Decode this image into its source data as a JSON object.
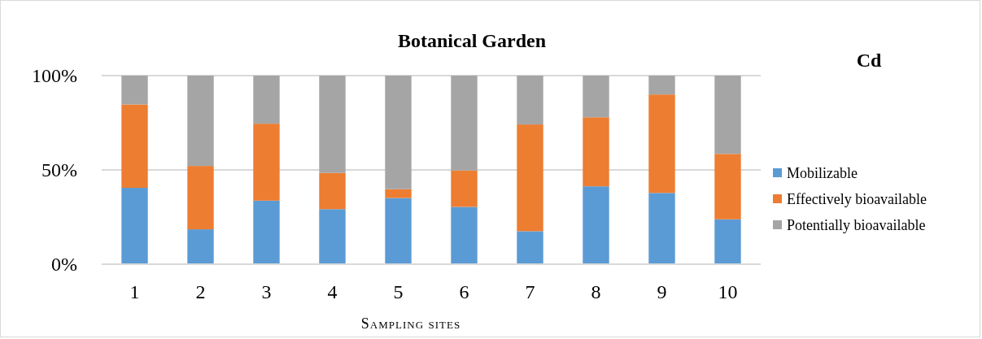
{
  "chart_data": {
    "type": "bar",
    "title": "Botanical Garden",
    "subtitle": "Cd",
    "xlabel": "Sampling sites",
    "stacked": true,
    "grid": "y",
    "legend": "right",
    "categories": [
      "1",
      "2",
      "3",
      "4",
      "5",
      "6",
      "7",
      "8",
      "9",
      "10"
    ],
    "ylim": [
      0,
      100
    ],
    "yticks": [
      {
        "value": 0,
        "label": "0%"
      },
      {
        "value": 50,
        "label": "50%"
      },
      {
        "value": 100,
        "label": "100%"
      }
    ],
    "series": [
      {
        "name": "Mobilizable",
        "color": "#5b9bd5",
        "values": [
          40.5,
          18.5,
          33.7,
          29.2,
          35.1,
          30.4,
          17.5,
          41.3,
          37.8,
          23.8
        ]
      },
      {
        "name": "Effectively bioavailable",
        "color": "#ed7d31",
        "values": [
          44.2,
          33.6,
          40.8,
          19.2,
          4.7,
          19.3,
          56.6,
          36.6,
          52.2,
          34.7
        ]
      },
      {
        "name": "Potentially bioavailable",
        "color": "#a5a5a5",
        "values": [
          15.3,
          47.9,
          25.5,
          51.6,
          60.2,
          50.3,
          25.9,
          22.1,
          10.0,
          41.5
        ]
      }
    ]
  }
}
